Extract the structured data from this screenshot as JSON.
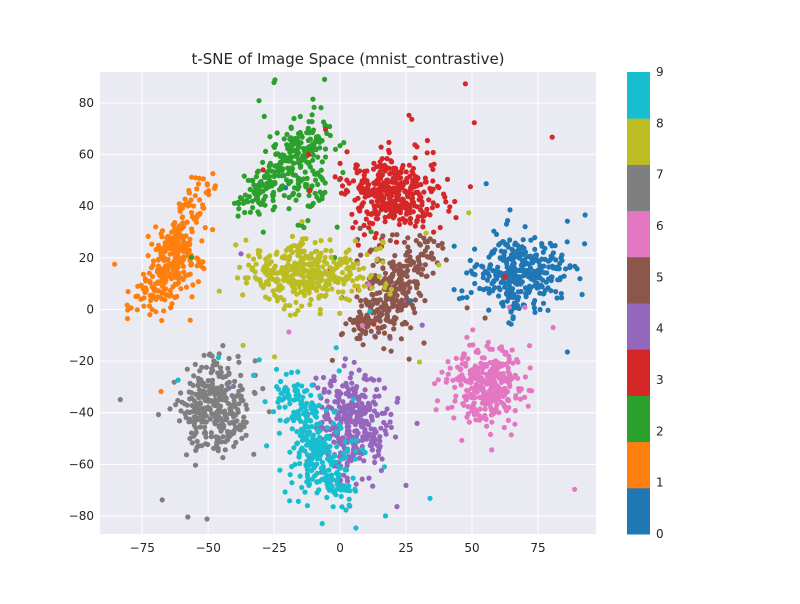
{
  "chart_data": {
    "type": "scatter",
    "title": "t-SNE of Image Space (mnist_contrastive)",
    "xlabel": "",
    "ylabel": "",
    "xlim": [
      -91,
      97
    ],
    "ylim": [
      -87,
      92
    ],
    "xticks": [
      -75,
      -50,
      -25,
      0,
      25,
      50,
      75
    ],
    "yticks": [
      -80,
      -60,
      -40,
      -20,
      0,
      20,
      40,
      60,
      80
    ],
    "grid": true,
    "background": "#eaeaf2",
    "colorbar": {
      "min": 0,
      "max": 9,
      "tick_labels": [
        "0",
        "1",
        "2",
        "3",
        "4",
        "5",
        "6",
        "7",
        "8",
        "9"
      ],
      "colors": [
        "#1f77b4",
        "#ff7f0e",
        "#2ca02c",
        "#d62728",
        "#9467bd",
        "#8c564b",
        "#e377c2",
        "#7f7f7f",
        "#bcbd22",
        "#17becf"
      ]
    },
    "clusters": [
      {
        "label": 0,
        "color": "#1f77b4",
        "center": [
          68,
          14
        ],
        "spread": [
          11,
          10
        ],
        "count": 360
      },
      {
        "label": 1,
        "color": "#ff7f0e",
        "center": [
          -62,
          18
        ],
        "spread": [
          5,
          10
        ],
        "count": 320,
        "ridge": [
          [
            -75,
            0
          ],
          [
            -65,
            20
          ],
          [
            -52,
            48
          ]
        ]
      },
      {
        "label": 2,
        "color": "#2ca02c",
        "center": [
          -15,
          55
        ],
        "spread": [
          10,
          14
        ],
        "count": 330,
        "ridge": [
          [
            -35,
            40
          ],
          [
            -10,
            68
          ]
        ]
      },
      {
        "label": 3,
        "color": "#d62728",
        "center": [
          20,
          45
        ],
        "spread": [
          11,
          10
        ],
        "count": 380
      },
      {
        "label": 4,
        "color": "#9467bd",
        "center": [
          5,
          -45
        ],
        "spread": [
          9,
          14
        ],
        "count": 340
      },
      {
        "label": 5,
        "color": "#8c564b",
        "center": [
          20,
          5
        ],
        "spread": [
          7,
          14
        ],
        "count": 320,
        "ridge": [
          [
            5,
            -10
          ],
          [
            35,
            25
          ]
        ]
      },
      {
        "label": 6,
        "color": "#e377c2",
        "center": [
          55,
          -30
        ],
        "spread": [
          9,
          10
        ],
        "count": 340
      },
      {
        "label": 7,
        "color": "#7f7f7f",
        "center": [
          -47,
          -38
        ],
        "spread": [
          8,
          12
        ],
        "count": 330
      },
      {
        "label": 8,
        "color": "#bcbd22",
        "center": [
          -12,
          14
        ],
        "spread": [
          15,
          8
        ],
        "count": 380
      },
      {
        "label": 9,
        "color": "#17becf",
        "center": [
          -8,
          -55
        ],
        "spread": [
          10,
          14
        ],
        "count": 330,
        "ridge": [
          [
            -20,
            -30
          ],
          [
            0,
            -72
          ]
        ]
      }
    ]
  }
}
